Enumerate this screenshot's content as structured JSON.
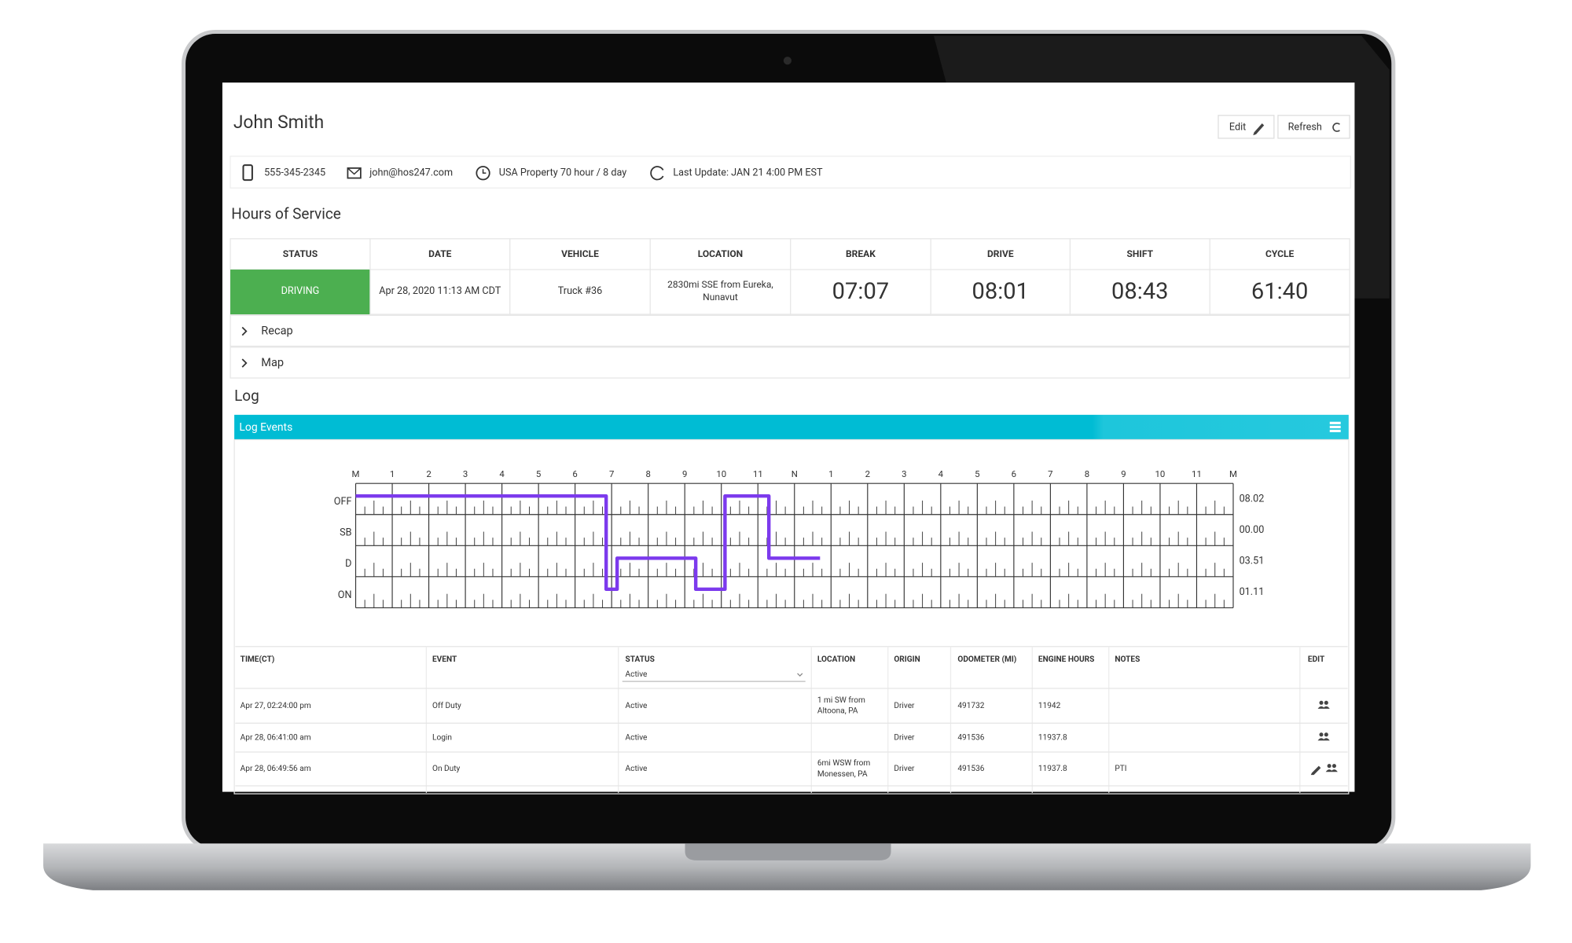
{
  "driver": {
    "name": "John Smith",
    "phone": "555-345-2345",
    "email": "john@hos247.com",
    "ruleset": "USA Property 70 hour / 8 day",
    "last_update": "Last Update: JAN 21 4:00 PM EST"
  },
  "buttons": [
    "Edit",
    "Refresh"
  ],
  "hos": {
    "title": "Hours of Service",
    "headers": [
      "STATUS",
      "DATE",
      "VEHICLE",
      "LOCATION",
      "BREAK",
      "DRIVE",
      "SHIFT",
      "CYCLE"
    ],
    "row": [
      "DRIVING",
      "Apr 28, 2020 11:13 AM CDT",
      "Truck #36",
      [
        "2830mi SSE from Eureka,",
        "Nunavut"
      ],
      "07:07",
      "08:01",
      "08:43",
      "61:40"
    ]
  },
  "sections": [
    "Recap",
    "Map"
  ],
  "log": {
    "title": "Log",
    "panel_title": "Log Events",
    "graph": {
      "hour_labels": [
        "M",
        "1",
        "2",
        "3",
        "4",
        "5",
        "6",
        "7",
        "8",
        "9",
        "10",
        "11",
        "N",
        "1",
        "2",
        "3",
        "4",
        "5",
        "6",
        "7",
        "8",
        "9",
        "10",
        "11",
        "M"
      ],
      "statuses": [
        "OFF",
        "SB",
        "D",
        "ON"
      ],
      "totals": [
        "08.02",
        "00.00",
        "03.51",
        "01.11"
      ],
      "line": {
        "x": [
          0,
          6.85,
          6.85,
          7.15,
          7.15,
          9.3,
          9.3,
          10.1,
          10.1,
          11.3,
          11.3,
          12.7
        ],
        "y": [
          "OFF",
          "OFF",
          "ON",
          "ON",
          "D",
          "D",
          "ON",
          "ON",
          "OFF",
          "OFF",
          "D",
          "D"
        ]
      }
    },
    "table": {
      "headers": [
        "TIME(CT)",
        "EVENT",
        "STATUS",
        "LOCATION",
        "ORIGIN",
        "ODOMETER (MI)",
        "ENGINE HOURS",
        "NOTES",
        "EDIT"
      ],
      "status_filter": "Active",
      "rows": [
        [
          "Apr 27, 02:24:00 pm",
          "Off Duty",
          "Active",
          [
            "1 mi SW from",
            "Altoona, PA"
          ],
          "Driver",
          "491732",
          "11942",
          null
        ],
        [
          "Apr 28, 06:41:00 am",
          "Login",
          "Active",
          null,
          "Driver",
          "491536",
          "11937.8",
          null
        ],
        [
          "Apr 28, 06:49:56 am",
          "On Duty",
          "Active",
          [
            "6mi WSW from",
            "Monessen, PA"
          ],
          "Driver",
          "491536",
          "11937.8",
          "PTI"
        ]
      ]
    }
  }
}
